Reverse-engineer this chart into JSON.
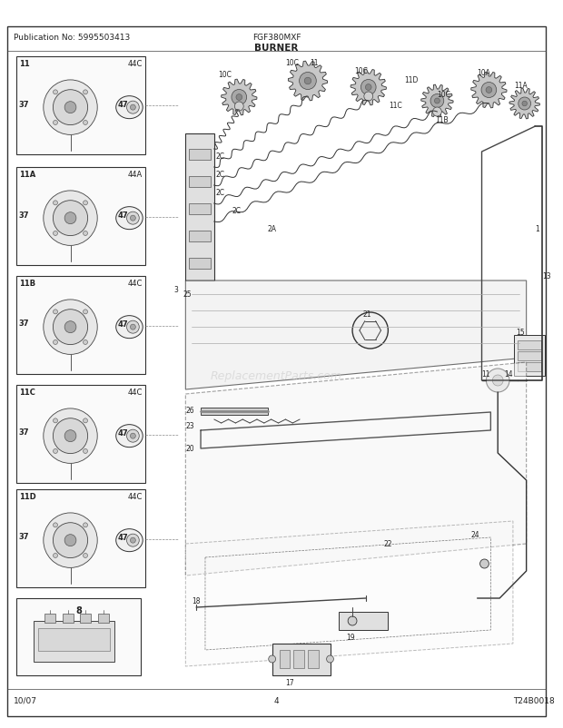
{
  "title_pub": "Publication No: 5995503413",
  "title_model": "FGF380MXF",
  "title_section": "BURNER",
  "footer_left": "10/07",
  "footer_center": "4",
  "footer_right": "T24B0018",
  "bg_color": "#ffffff",
  "text_color": "#222222",
  "fig_w": 6.2,
  "fig_h": 8.03,
  "dpi": 100
}
